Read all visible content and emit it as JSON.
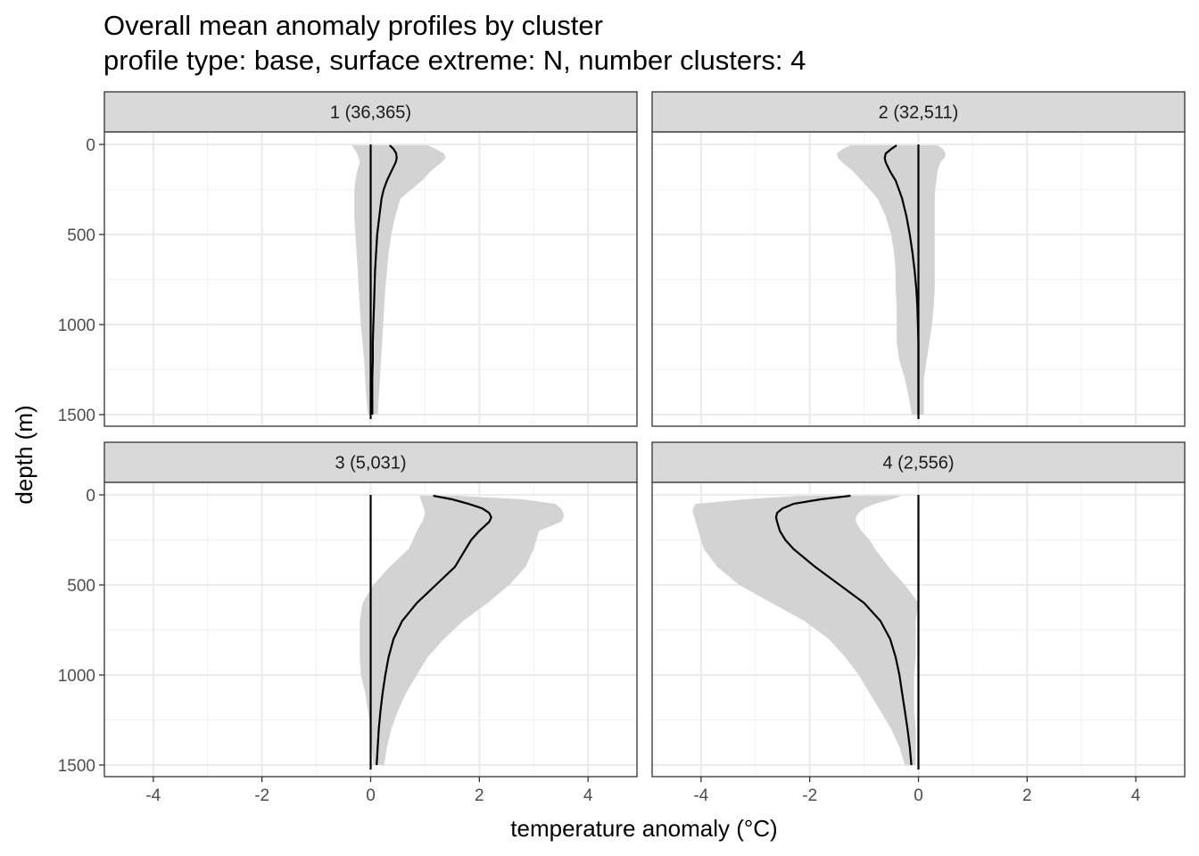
{
  "chart_data": {
    "type": "line",
    "title": "Overall mean anomaly profiles by cluster",
    "subtitle": "profile type: base, surface extreme: N, number clusters: 4",
    "xlabel": "temperature anomaly (°C)",
    "ylabel": "depth (m)",
    "xlim": [
      -4.9,
      4.9
    ],
    "ylim": [
      0,
      1550
    ],
    "y_reversed": true,
    "x_ticks": [
      -4,
      -2,
      0,
      2,
      4
    ],
    "x_tick_labels": [
      "-4",
      "-2",
      "0",
      "2",
      "4"
    ],
    "y_ticks": [
      0,
      500,
      1000,
      1500
    ],
    "y_tick_labels": [
      "0",
      "500",
      "1000",
      "1500"
    ],
    "reference_line_x": 0,
    "grid": true,
    "facets": [
      {
        "label": "1 (36,365)",
        "cluster": 1,
        "n": "36,365",
        "depth": [
          5,
          25,
          50,
          75,
          100,
          150,
          200,
          250,
          300,
          400,
          500,
          600,
          700,
          800,
          900,
          1000,
          1100,
          1200,
          1300,
          1400,
          1500
        ],
        "mean": [
          0.35,
          0.42,
          0.47,
          0.48,
          0.46,
          0.38,
          0.3,
          0.24,
          0.2,
          0.16,
          0.12,
          0.1,
          0.08,
          0.07,
          0.06,
          0.05,
          0.04,
          0.04,
          0.03,
          0.03,
          0.03
        ],
        "lower": [
          -0.35,
          -0.3,
          -0.25,
          -0.22,
          -0.2,
          -0.25,
          -0.28,
          -0.3,
          -0.3,
          -0.3,
          -0.28,
          -0.26,
          -0.24,
          -0.22,
          -0.2,
          -0.18,
          -0.15,
          -0.12,
          -0.1,
          -0.08,
          -0.05
        ],
        "upper": [
          1.05,
          1.2,
          1.35,
          1.38,
          1.3,
          1.1,
          0.95,
          0.75,
          0.55,
          0.45,
          0.38,
          0.33,
          0.3,
          0.27,
          0.25,
          0.23,
          0.21,
          0.19,
          0.17,
          0.15,
          0.13
        ]
      },
      {
        "label": "2 (32,511)",
        "cluster": 2,
        "n": "32,511",
        "depth": [
          5,
          25,
          50,
          75,
          100,
          150,
          200,
          250,
          300,
          400,
          500,
          600,
          700,
          800,
          900,
          1000,
          1100,
          1200,
          1300,
          1400,
          1500
        ],
        "mean": [
          -0.4,
          -0.5,
          -0.6,
          -0.62,
          -0.6,
          -0.52,
          -0.42,
          -0.36,
          -0.3,
          -0.22,
          -0.16,
          -0.11,
          -0.07,
          -0.04,
          -0.02,
          -0.01,
          0,
          0,
          0,
          0,
          0
        ],
        "lower": [
          -1.25,
          -1.4,
          -1.5,
          -1.48,
          -1.4,
          -1.2,
          -1.05,
          -0.9,
          -0.75,
          -0.6,
          -0.5,
          -0.45,
          -0.42,
          -0.42,
          -0.4,
          -0.4,
          -0.4,
          -0.35,
          -0.25,
          -0.18,
          -0.12
        ],
        "upper": [
          0.35,
          0.45,
          0.5,
          0.48,
          0.4,
          0.35,
          0.33,
          0.31,
          0.3,
          0.3,
          0.3,
          0.3,
          0.3,
          0.3,
          0.28,
          0.25,
          0.2,
          0.15,
          0.1,
          0.1,
          0.1
        ]
      },
      {
        "label": "3 (5,031)",
        "cluster": 3,
        "n": "5,031",
        "depth": [
          5,
          25,
          50,
          75,
          100,
          125,
          150,
          200,
          250,
          300,
          400,
          500,
          600,
          700,
          800,
          900,
          1000,
          1100,
          1200,
          1300,
          1400,
          1500
        ],
        "mean": [
          1.15,
          1.5,
          1.8,
          2.05,
          2.18,
          2.22,
          2.18,
          2.0,
          1.85,
          1.75,
          1.55,
          1.2,
          0.85,
          0.58,
          0.42,
          0.33,
          0.27,
          0.22,
          0.18,
          0.15,
          0.13,
          0.11
        ],
        "lower": [
          0.9,
          0.92,
          0.95,
          0.98,
          1.0,
          0.98,
          0.95,
          0.85,
          0.78,
          0.7,
          0.35,
          0.05,
          -0.15,
          -0.2,
          -0.2,
          -0.2,
          -0.18,
          -0.1,
          -0.05,
          0.0,
          0.02,
          0.05
        ],
        "upper": [
          1.6,
          2.8,
          3.4,
          3.5,
          3.55,
          3.55,
          3.5,
          3.1,
          3.05,
          3.0,
          2.85,
          2.55,
          2.15,
          1.7,
          1.35,
          1.05,
          0.85,
          0.65,
          0.5,
          0.38,
          0.3,
          0.25
        ]
      },
      {
        "label": "4 (2,556)",
        "cluster": 4,
        "n": "2,556",
        "depth": [
          5,
          25,
          50,
          75,
          100,
          125,
          150,
          200,
          250,
          300,
          400,
          500,
          600,
          700,
          800,
          900,
          1000,
          1100,
          1200,
          1300,
          1400,
          1500
        ],
        "mean": [
          -1.25,
          -1.8,
          -2.3,
          -2.5,
          -2.6,
          -2.62,
          -2.6,
          -2.55,
          -2.45,
          -2.3,
          -1.9,
          -1.45,
          -1.0,
          -0.7,
          -0.52,
          -0.42,
          -0.35,
          -0.3,
          -0.25,
          -0.2,
          -0.16,
          -0.13
        ],
        "lower": [
          -2.2,
          -3.2,
          -4.1,
          -4.15,
          -4.15,
          -4.12,
          -4.1,
          -4.05,
          -4.0,
          -3.95,
          -3.7,
          -3.3,
          -2.7,
          -2.1,
          -1.65,
          -1.35,
          -1.1,
          -0.9,
          -0.7,
          -0.5,
          -0.35,
          -0.25
        ],
        "upper": [
          -0.3,
          -0.5,
          -0.8,
          -1.0,
          -1.1,
          -1.15,
          -1.15,
          -1.05,
          -0.9,
          -0.8,
          -0.55,
          -0.25,
          0.0,
          -0.05,
          -0.05,
          -0.05,
          -0.08,
          -0.08,
          -0.08,
          -0.05,
          -0.05,
          -0.05
        ]
      }
    ]
  }
}
